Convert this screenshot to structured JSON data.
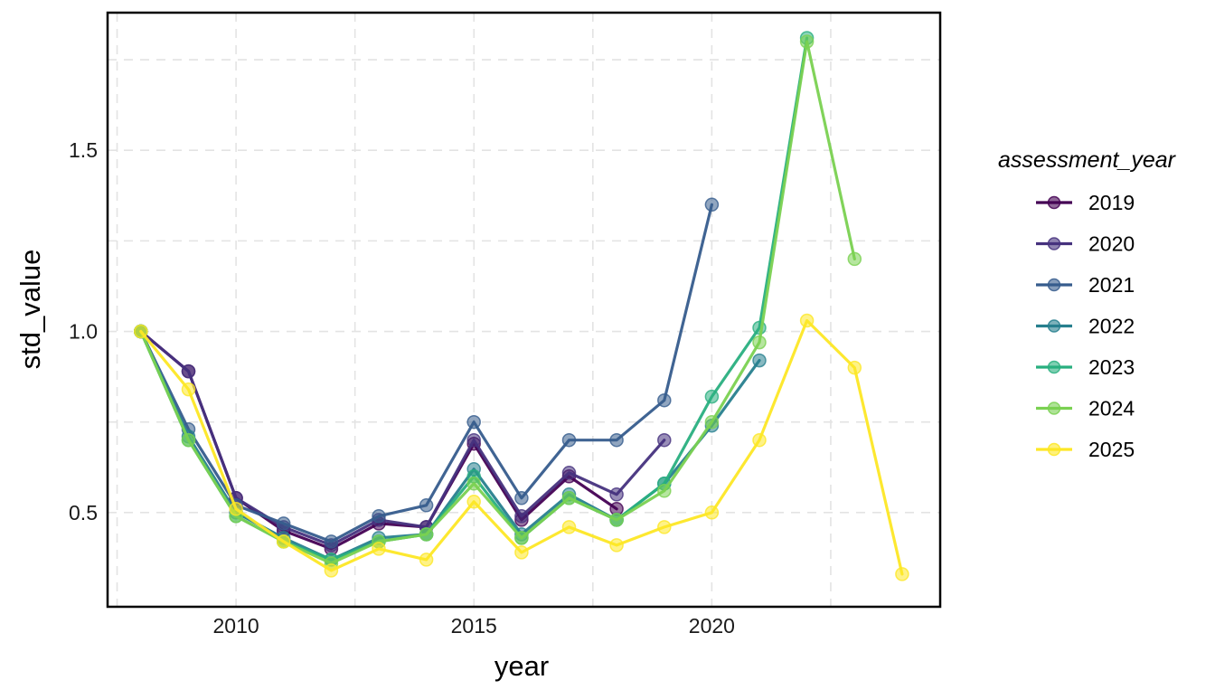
{
  "chart_data": {
    "type": "line",
    "title": "",
    "xlabel": "year",
    "ylabel": "std_value",
    "legend_title": "assessment_year",
    "legend_position": "right",
    "grid": true,
    "grid_style": "dashed",
    "background_color": "#ffffff",
    "panel_border_color": "#000000",
    "xlim": [
      2007.3,
      2024.8
    ],
    "ylim": [
      0.24,
      1.88
    ],
    "x_ticks": [
      {
        "value": 2010,
        "label": "2010"
      },
      {
        "value": 2015,
        "label": "2015"
      },
      {
        "value": 2020,
        "label": "2020"
      }
    ],
    "y_ticks": [
      {
        "value": 0.5,
        "label": "0.5"
      },
      {
        "value": 1.0,
        "label": "1.0"
      },
      {
        "value": 1.5,
        "label": "1.5"
      }
    ],
    "x_gridlines": [
      2007.5,
      2010,
      2012.5,
      2015,
      2017.5,
      2020,
      2022.5
    ],
    "y_gridlines": [
      0.5,
      0.75,
      1.0,
      1.25,
      1.5,
      1.75
    ],
    "series": [
      {
        "name": "2019",
        "color": "#440154",
        "x": [
          2008,
          2009,
          2010,
          2011,
          2012,
          2013,
          2014,
          2015,
          2016,
          2017,
          2018
        ],
        "values": [
          1.0,
          0.89,
          0.54,
          0.45,
          0.4,
          0.47,
          0.46,
          0.69,
          0.48,
          0.6,
          0.51
        ]
      },
      {
        "name": "2020",
        "color": "#46327e",
        "x": [
          2008,
          2009,
          2010,
          2011,
          2012,
          2013,
          2014,
          2015,
          2016,
          2017,
          2018,
          2019
        ],
        "values": [
          1.0,
          0.89,
          0.54,
          0.46,
          0.41,
          0.48,
          0.46,
          0.7,
          0.49,
          0.61,
          0.55,
          0.7
        ]
      },
      {
        "name": "2021",
        "color": "#365c8d",
        "x": [
          2008,
          2009,
          2010,
          2011,
          2012,
          2013,
          2014,
          2015,
          2016,
          2017,
          2018,
          2019,
          2020
        ],
        "values": [
          1.0,
          0.73,
          0.52,
          0.47,
          0.42,
          0.49,
          0.52,
          0.75,
          0.54,
          0.7,
          0.7,
          0.81,
          1.35
        ]
      },
      {
        "name": "2022",
        "color": "#277f8e",
        "x": [
          2008,
          2009,
          2010,
          2011,
          2012,
          2013,
          2014,
          2015,
          2016,
          2017,
          2018,
          2019,
          2020,
          2021
        ],
        "values": [
          1.0,
          0.71,
          0.5,
          0.43,
          0.37,
          0.43,
          0.44,
          0.62,
          0.44,
          0.55,
          0.48,
          0.58,
          0.74,
          0.92
        ]
      },
      {
        "name": "2023",
        "color": "#29af7f",
        "x": [
          2008,
          2009,
          2010,
          2011,
          2012,
          2013,
          2014,
          2015,
          2016,
          2017,
          2018,
          2019,
          2020,
          2021,
          2022
        ],
        "values": [
          1.0,
          0.7,
          0.49,
          0.42,
          0.37,
          0.42,
          0.44,
          0.6,
          0.43,
          0.54,
          0.48,
          0.58,
          0.82,
          1.01,
          1.81
        ]
      },
      {
        "name": "2024",
        "color": "#7ad151",
        "x": [
          2008,
          2009,
          2010,
          2011,
          2012,
          2013,
          2014,
          2015,
          2016,
          2017,
          2018,
          2019,
          2020,
          2021,
          2022,
          2023
        ],
        "values": [
          1.0,
          0.7,
          0.49,
          0.42,
          0.36,
          0.42,
          0.44,
          0.58,
          0.43,
          0.54,
          0.48,
          0.56,
          0.75,
          0.97,
          1.8,
          1.2
        ]
      },
      {
        "name": "2025",
        "color": "#fde725",
        "x": [
          2008,
          2009,
          2010,
          2011,
          2012,
          2013,
          2014,
          2015,
          2016,
          2017,
          2018,
          2019,
          2020,
          2021,
          2022,
          2023,
          2024
        ],
        "values": [
          1.0,
          0.84,
          0.51,
          0.42,
          0.34,
          0.4,
          0.37,
          0.53,
          0.39,
          0.46,
          0.41,
          0.46,
          0.5,
          0.7,
          1.03,
          0.9,
          0.33
        ]
      }
    ],
    "style": {
      "gridline_color": "#e3e3e3",
      "line_width": 3.2,
      "point_radius": 7
    }
  }
}
